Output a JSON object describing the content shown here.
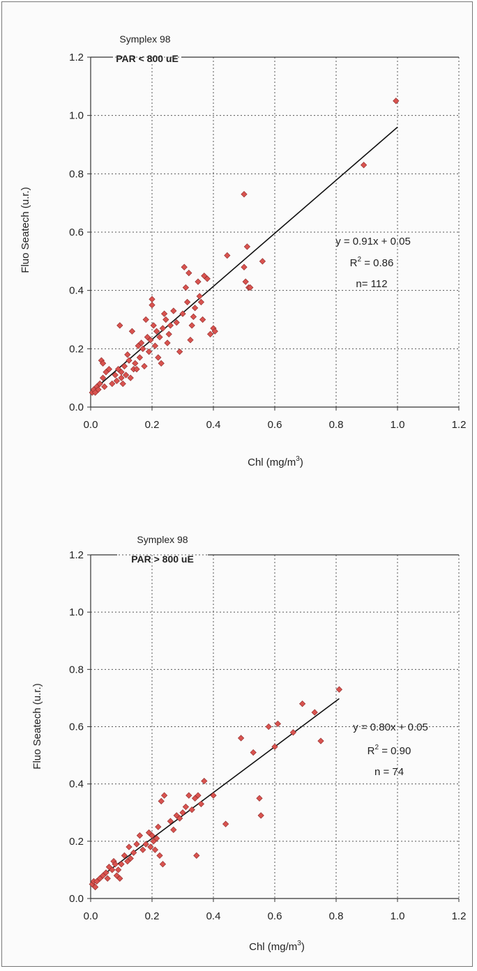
{
  "chart_data": [
    {
      "type": "scatter",
      "title": "Symplex 98",
      "subtitle": "PAR < 800 uE",
      "xlabel": "Chl (mg/m",
      "xlabel_sup": "3",
      "xlabel_end": ")",
      "ylabel": "Fluo Seatech (u.r.)",
      "xlim": [
        0,
        1.2
      ],
      "ylim": [
        0,
        1.2
      ],
      "xticks": [
        "0.0",
        "0.2",
        "0.4",
        "0.6",
        "0.8",
        "1.0",
        "1.2"
      ],
      "yticks": [
        "0.0",
        "0.2",
        "0.4",
        "0.6",
        "0.8",
        "1.0",
        "1.2"
      ],
      "grid": true,
      "marker_color": "#d9534f",
      "fit": {
        "slope": 0.91,
        "intercept": 0.05,
        "x_range": [
          0,
          1.0
        ]
      },
      "stats": {
        "equation": "y = 0.91x + 0.05",
        "r2_prefix": "R",
        "r2_sup": "2",
        "r2_value": " = 0.86",
        "n": "n= 112"
      },
      "points": [
        [
          0.005,
          0.05
        ],
        [
          0.01,
          0.06
        ],
        [
          0.015,
          0.05
        ],
        [
          0.02,
          0.07
        ],
        [
          0.025,
          0.06
        ],
        [
          0.03,
          0.08
        ],
        [
          0.035,
          0.16
        ],
        [
          0.04,
          0.15
        ],
        [
          0.04,
          0.1
        ],
        [
          0.045,
          0.07
        ],
        [
          0.05,
          0.12
        ],
        [
          0.06,
          0.13
        ],
        [
          0.07,
          0.08
        ],
        [
          0.08,
          0.11
        ],
        [
          0.085,
          0.09
        ],
        [
          0.09,
          0.13
        ],
        [
          0.095,
          0.28
        ],
        [
          0.1,
          0.12
        ],
        [
          0.1,
          0.1
        ],
        [
          0.105,
          0.08
        ],
        [
          0.11,
          0.14
        ],
        [
          0.115,
          0.11
        ],
        [
          0.12,
          0.18
        ],
        [
          0.125,
          0.16
        ],
        [
          0.13,
          0.1
        ],
        [
          0.135,
          0.26
        ],
        [
          0.14,
          0.13
        ],
        [
          0.145,
          0.15
        ],
        [
          0.15,
          0.13
        ],
        [
          0.155,
          0.21
        ],
        [
          0.16,
          0.17
        ],
        [
          0.165,
          0.22
        ],
        [
          0.17,
          0.2
        ],
        [
          0.175,
          0.14
        ],
        [
          0.18,
          0.3
        ],
        [
          0.185,
          0.24
        ],
        [
          0.19,
          0.19
        ],
        [
          0.195,
          0.23
        ],
        [
          0.2,
          0.37
        ],
        [
          0.2,
          0.35
        ],
        [
          0.205,
          0.28
        ],
        [
          0.21,
          0.21
        ],
        [
          0.215,
          0.26
        ],
        [
          0.22,
          0.17
        ],
        [
          0.225,
          0.24
        ],
        [
          0.23,
          0.15
        ],
        [
          0.235,
          0.27
        ],
        [
          0.24,
          0.32
        ],
        [
          0.245,
          0.3
        ],
        [
          0.25,
          0.22
        ],
        [
          0.255,
          0.25
        ],
        [
          0.26,
          0.28
        ],
        [
          0.27,
          0.33
        ],
        [
          0.28,
          0.29
        ],
        [
          0.29,
          0.19
        ],
        [
          0.3,
          0.32
        ],
        [
          0.305,
          0.48
        ],
        [
          0.31,
          0.41
        ],
        [
          0.315,
          0.36
        ],
        [
          0.32,
          0.46
        ],
        [
          0.325,
          0.23
        ],
        [
          0.33,
          0.28
        ],
        [
          0.335,
          0.31
        ],
        [
          0.34,
          0.34
        ],
        [
          0.35,
          0.43
        ],
        [
          0.355,
          0.38
        ],
        [
          0.36,
          0.36
        ],
        [
          0.365,
          0.3
        ],
        [
          0.37,
          0.45
        ],
        [
          0.38,
          0.44
        ],
        [
          0.39,
          0.25
        ],
        [
          0.4,
          0.27
        ],
        [
          0.405,
          0.26
        ],
        [
          0.445,
          0.52
        ],
        [
          0.5,
          0.73
        ],
        [
          0.5,
          0.48
        ],
        [
          0.505,
          0.43
        ],
        [
          0.51,
          0.55
        ],
        [
          0.515,
          0.41
        ],
        [
          0.52,
          0.41
        ],
        [
          0.56,
          0.5
        ],
        [
          0.89,
          0.83
        ],
        [
          0.995,
          1.05
        ]
      ]
    },
    {
      "type": "scatter",
      "title": "Symplex 98",
      "subtitle": "PAR > 800 uE",
      "xlabel": "Chl (mg/m",
      "xlabel_sup": "3",
      "xlabel_end": ")",
      "ylabel": "Fluo Seatech (u.r.)",
      "xlim": [
        0,
        1.2
      ],
      "ylim": [
        0,
        1.2
      ],
      "xticks": [
        "0.0",
        "0.2",
        "0.4",
        "0.6",
        "0.8",
        "1.0",
        "1.2"
      ],
      "yticks": [
        "0.0",
        "0.2",
        "0.4",
        "0.6",
        "0.8",
        "1.0",
        "1.2"
      ],
      "grid": true,
      "marker_color": "#d9534f",
      "fit": {
        "slope": 0.8,
        "intercept": 0.05,
        "x_range": [
          0,
          0.81
        ]
      },
      "stats": {
        "equation": "y = 0.80x + 0.05",
        "r2_prefix": "R",
        "r2_sup": "2",
        "r2_value": " = 0.90",
        "n": "n = 74"
      },
      "points": [
        [
          0.005,
          0.05
        ],
        [
          0.01,
          0.06
        ],
        [
          0.015,
          0.04
        ],
        [
          0.02,
          0.06
        ],
        [
          0.03,
          0.07
        ],
        [
          0.04,
          0.08
        ],
        [
          0.05,
          0.09
        ],
        [
          0.055,
          0.07
        ],
        [
          0.06,
          0.11
        ],
        [
          0.07,
          0.1
        ],
        [
          0.075,
          0.13
        ],
        [
          0.08,
          0.12
        ],
        [
          0.085,
          0.08
        ],
        [
          0.09,
          0.1
        ],
        [
          0.095,
          0.07
        ],
        [
          0.1,
          0.12
        ],
        [
          0.11,
          0.15
        ],
        [
          0.12,
          0.13
        ],
        [
          0.125,
          0.18
        ],
        [
          0.13,
          0.14
        ],
        [
          0.14,
          0.16
        ],
        [
          0.15,
          0.19
        ],
        [
          0.16,
          0.22
        ],
        [
          0.17,
          0.17
        ],
        [
          0.18,
          0.19
        ],
        [
          0.19,
          0.23
        ],
        [
          0.195,
          0.18
        ],
        [
          0.2,
          0.22
        ],
        [
          0.205,
          0.2
        ],
        [
          0.21,
          0.17
        ],
        [
          0.215,
          0.21
        ],
        [
          0.22,
          0.25
        ],
        [
          0.225,
          0.15
        ],
        [
          0.23,
          0.34
        ],
        [
          0.235,
          0.12
        ],
        [
          0.24,
          0.36
        ],
        [
          0.26,
          0.27
        ],
        [
          0.27,
          0.24
        ],
        [
          0.28,
          0.29
        ],
        [
          0.29,
          0.28
        ],
        [
          0.3,
          0.3
        ],
        [
          0.31,
          0.32
        ],
        [
          0.32,
          0.36
        ],
        [
          0.33,
          0.31
        ],
        [
          0.34,
          0.35
        ],
        [
          0.345,
          0.15
        ],
        [
          0.35,
          0.36
        ],
        [
          0.36,
          0.33
        ],
        [
          0.37,
          0.41
        ],
        [
          0.4,
          0.36
        ],
        [
          0.44,
          0.26
        ],
        [
          0.49,
          0.56
        ],
        [
          0.53,
          0.51
        ],
        [
          0.55,
          0.35
        ],
        [
          0.555,
          0.29
        ],
        [
          0.58,
          0.6
        ],
        [
          0.6,
          0.53
        ],
        [
          0.61,
          0.61
        ],
        [
          0.66,
          0.58
        ],
        [
          0.69,
          0.68
        ],
        [
          0.73,
          0.65
        ],
        [
          0.75,
          0.55
        ],
        [
          0.81,
          0.73
        ]
      ]
    }
  ]
}
